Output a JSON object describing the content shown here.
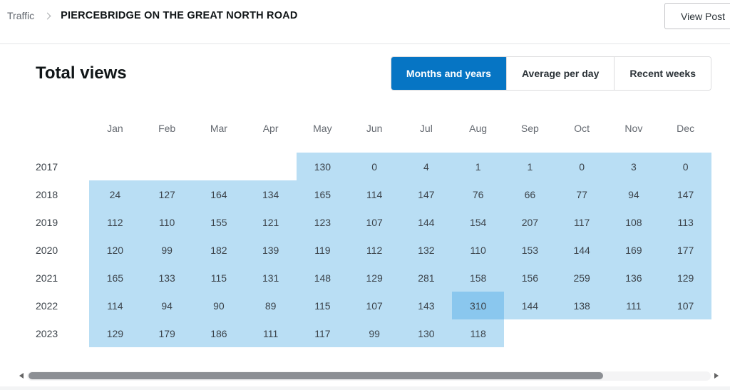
{
  "breadcrumb": {
    "section": "Traffic",
    "page": "PIERCEBRIDGE ON THE GREAT NORTH ROAD"
  },
  "header": {
    "view_post_label": "View Post"
  },
  "card": {
    "title": "Total views",
    "tabs": [
      {
        "label": "Months and years",
        "active": true
      },
      {
        "label": "Average per day",
        "active": false
      },
      {
        "label": "Recent weeks",
        "active": false
      }
    ]
  },
  "colors": {
    "accent": "#0675C4",
    "cell_highlight": "#b9def4",
    "cell_max_highlight": "#8ac7ee"
  },
  "chart_data": {
    "type": "heatmap",
    "title": "Total views",
    "columns": [
      "Jan",
      "Feb",
      "Mar",
      "Apr",
      "May",
      "Jun",
      "Jul",
      "Aug",
      "Sep",
      "Oct",
      "Nov",
      "Dec"
    ],
    "rows": [
      {
        "year": "2017",
        "values": [
          null,
          null,
          null,
          null,
          130,
          0,
          4,
          1,
          1,
          0,
          3,
          0
        ]
      },
      {
        "year": "2018",
        "values": [
          24,
          127,
          164,
          134,
          165,
          114,
          147,
          76,
          66,
          77,
          94,
          147
        ]
      },
      {
        "year": "2019",
        "values": [
          112,
          110,
          155,
          121,
          123,
          107,
          144,
          154,
          207,
          117,
          108,
          113
        ]
      },
      {
        "year": "2020",
        "values": [
          120,
          99,
          182,
          139,
          119,
          112,
          132,
          110,
          153,
          144,
          169,
          177
        ]
      },
      {
        "year": "2021",
        "values": [
          165,
          133,
          115,
          131,
          148,
          129,
          281,
          158,
          156,
          259,
          136,
          129
        ]
      },
      {
        "year": "2022",
        "values": [
          114,
          94,
          90,
          89,
          115,
          107,
          143,
          310,
          144,
          138,
          111,
          107
        ]
      },
      {
        "year": "2023",
        "values": [
          129,
          179,
          186,
          111,
          117,
          99,
          130,
          118,
          null,
          null,
          null,
          null
        ]
      }
    ],
    "highlight_max": 310,
    "legend_position": "none",
    "grid": false
  }
}
